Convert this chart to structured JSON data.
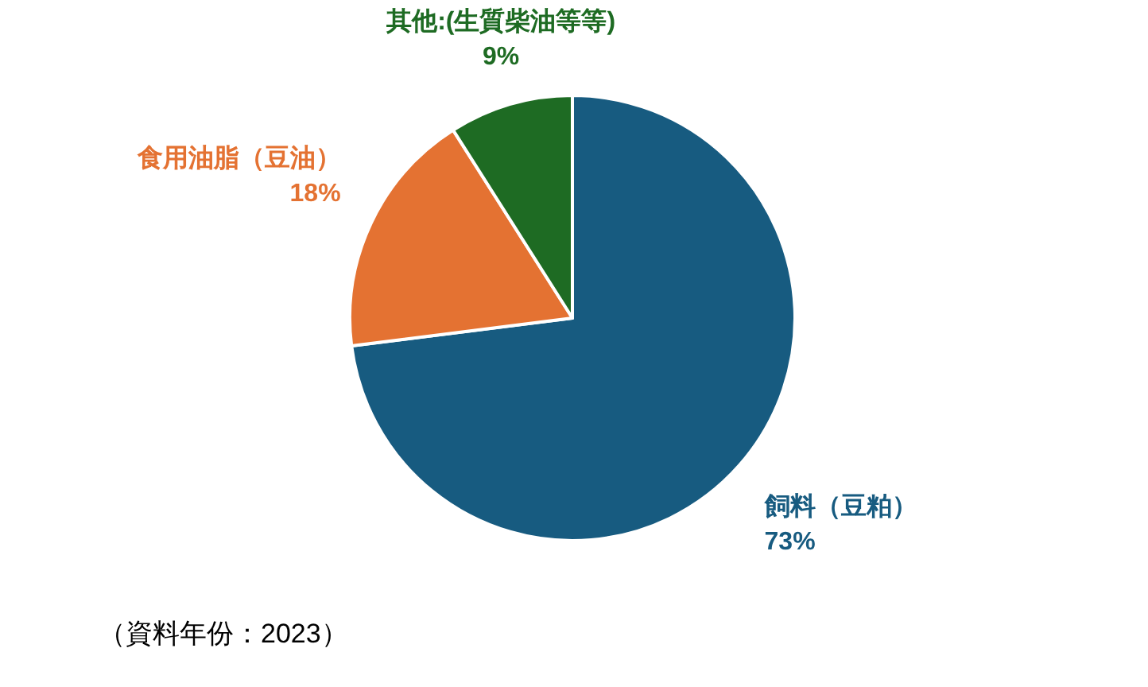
{
  "chart_data": {
    "type": "pie",
    "categories": [
      "飼料（豆粕）",
      "食用油脂（豆油）",
      "其他:(生質柴油等等)"
    ],
    "values": [
      73,
      18,
      9
    ],
    "value_labels": [
      "73%",
      "18%",
      "9%"
    ],
    "colors": [
      "#175b80",
      "#e47232",
      "#1e6b23"
    ],
    "annotations": [
      "（資料年份：2023）"
    ]
  }
}
